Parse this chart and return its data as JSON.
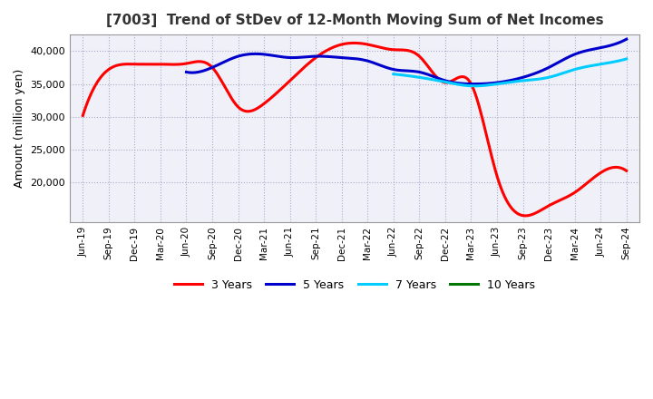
{
  "title": "[7003]  Trend of StDev of 12-Month Moving Sum of Net Incomes",
  "ylabel": "Amount (million yen)",
  "ylim": [
    14000,
    42500
  ],
  "yticks": [
    20000,
    25000,
    30000,
    35000,
    40000
  ],
  "line_colors": {
    "3y": "#ff0000",
    "5y": "#0000cc",
    "7y": "#00ccff",
    "10y": "#007700"
  },
  "legend_labels": [
    "3 Years",
    "5 Years",
    "7 Years",
    "10 Years"
  ],
  "x_labels": [
    "Jun-19",
    "Sep-19",
    "Dec-19",
    "Mar-20",
    "Jun-20",
    "Sep-20",
    "Dec-20",
    "Mar-21",
    "Jun-21",
    "Sep-21",
    "Dec-21",
    "Mar-22",
    "Jun-22",
    "Sep-22",
    "Dec-22",
    "Mar-23",
    "Jun-23",
    "Sep-23",
    "Dec-23",
    "Mar-24",
    "Jun-24",
    "Sep-24"
  ],
  "series_3y": [
    30200,
    37200,
    38000,
    38000,
    38100,
    37500,
    31500,
    32000,
    35500,
    39000,
    41000,
    41000,
    40200,
    39200,
    35200,
    35000,
    21000,
    15000,
    16500,
    18500,
    21500,
    21800
  ],
  "series_5y": [
    null,
    null,
    null,
    null,
    36800,
    37500,
    39200,
    39500,
    39000,
    39200,
    39000,
    38500,
    37200,
    36800,
    35500,
    35000,
    35200,
    36000,
    37500,
    39500,
    40500,
    41800
  ],
  "series_7y": [
    null,
    null,
    null,
    null,
    null,
    null,
    null,
    null,
    null,
    null,
    null,
    null,
    36500,
    36000,
    35300,
    34700,
    35000,
    35500,
    36000,
    37200,
    38000,
    38800
  ],
  "series_10y": [
    null,
    null,
    null,
    null,
    null,
    null,
    null,
    null,
    null,
    null,
    null,
    null,
    null,
    null,
    null,
    null,
    null,
    null,
    null,
    null,
    null,
    null
  ],
  "bg_color": "#f0f0f8",
  "grid_color": "#aaaacc",
  "line_width": 2.2
}
